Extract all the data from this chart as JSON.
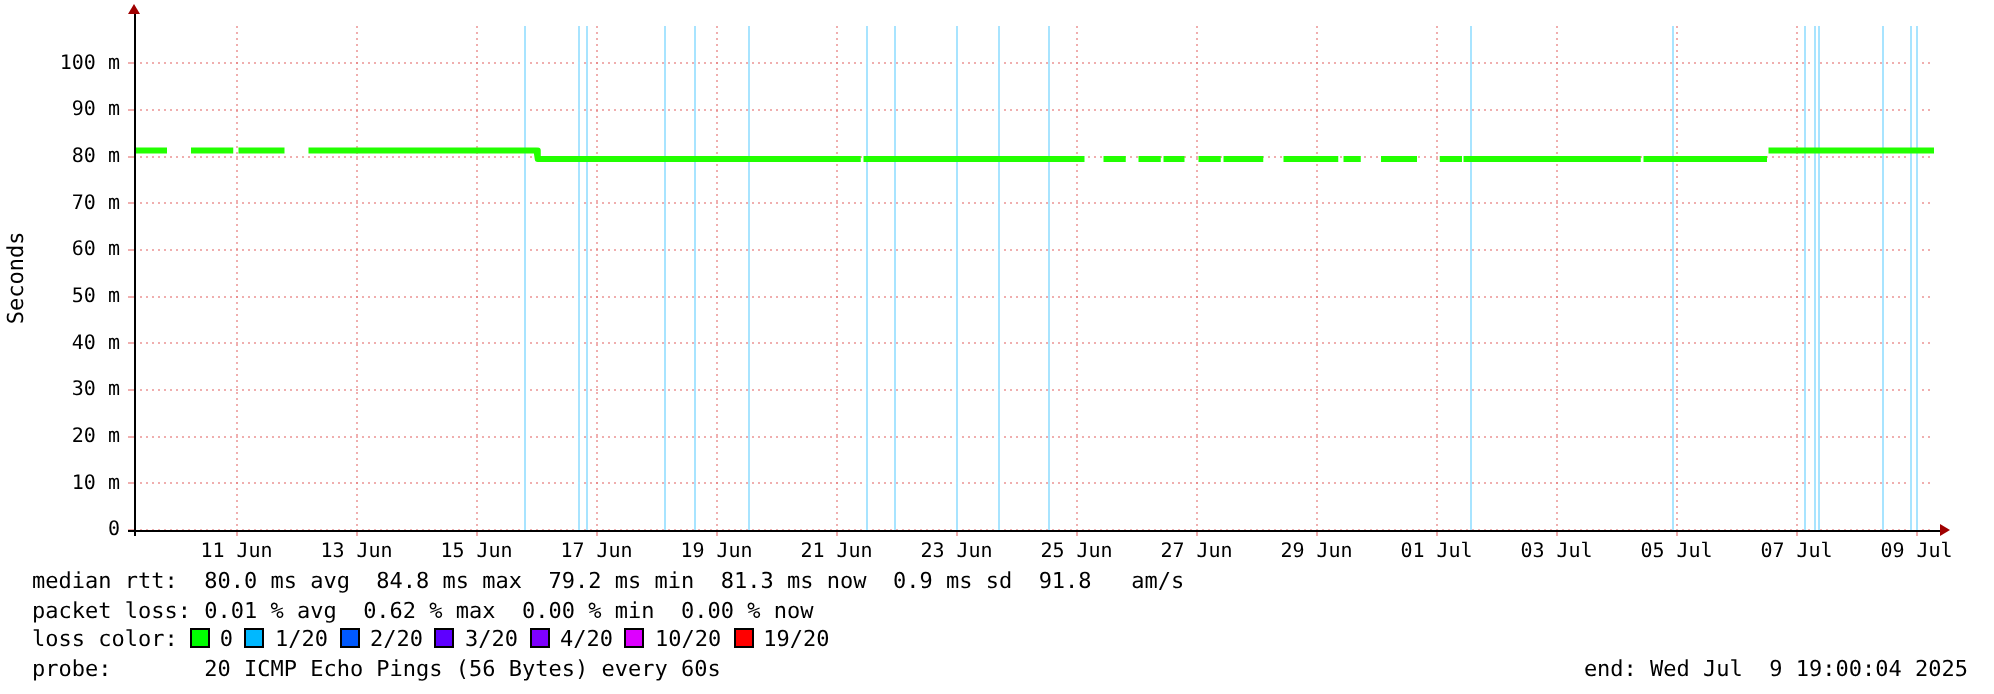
{
  "chart_data": {
    "type": "line",
    "ylabel": "Seconds",
    "xlim": [
      "2025-06-09T19:00",
      "2025-07-09T19:00"
    ],
    "xticks": [
      {
        "value": "2025-06-11T12:00",
        "label": "11 Jun"
      },
      {
        "value": "2025-06-13T12:00",
        "label": "13 Jun"
      },
      {
        "value": "2025-06-15T12:00",
        "label": "15 Jun"
      },
      {
        "value": "2025-06-17T12:00",
        "label": "17 Jun"
      },
      {
        "value": "2025-06-19T12:00",
        "label": "19 Jun"
      },
      {
        "value": "2025-06-21T12:00",
        "label": "21 Jun"
      },
      {
        "value": "2025-06-23T12:00",
        "label": "23 Jun"
      },
      {
        "value": "2025-06-25T12:00",
        "label": "25 Jun"
      },
      {
        "value": "2025-06-27T12:00",
        "label": "27 Jun"
      },
      {
        "value": "2025-06-29T12:00",
        "label": "29 Jun"
      },
      {
        "value": "2025-07-01T12:00",
        "label": "01 Jul"
      },
      {
        "value": "2025-07-03T12:00",
        "label": "03 Jul"
      },
      {
        "value": "2025-07-05T12:00",
        "label": "05 Jul"
      },
      {
        "value": "2025-07-07T12:00",
        "label": "07 Jul"
      },
      {
        "value": "2025-07-09T12:00",
        "label": "09 Jul"
      }
    ],
    "ylim": [
      0,
      108
    ],
    "yticks": [
      0,
      {
        "value": 10,
        "label": "10 m"
      },
      {
        "value": 20,
        "label": "20 m"
      },
      {
        "value": 30,
        "label": "30 m"
      },
      {
        "value": 40,
        "label": "40 m"
      },
      {
        "value": 50,
        "label": "50 m"
      },
      {
        "value": 60,
        "label": "60 m"
      },
      {
        "value": 70,
        "label": "70 m"
      },
      {
        "value": 80,
        "label": "80 m"
      },
      {
        "value": 90,
        "label": "90 m"
      },
      {
        "value": 100,
        "label": "100 m"
      }
    ],
    "grid": true,
    "legend": false,
    "marker": "none",
    "line_style": "solid",
    "series": [
      {
        "color": "#22ff00",
        "x": [
          "2025-06-09T19:00",
          "2025-06-10T07:00",
          "2025-06-10T13:00",
          "2025-06-10T19:00",
          "2025-06-11T09:30",
          "2025-06-11T12:00",
          "2025-06-11T14:00",
          "2025-06-12T06:00",
          "2025-06-12T12:00",
          "2025-06-12T18:00",
          "2025-06-16T12:00",
          "2025-06-16T12:30",
          "2025-06-21T20:30",
          "2025-06-21T22:00",
          "2025-06-22T00:00",
          "2025-06-25T14:00",
          "2025-06-25T18:00",
          "2025-06-26T00:00",
          "2025-06-26T06:30",
          "2025-06-26T10:00",
          "2025-06-26T14:00",
          "2025-06-26T20:30",
          "2025-06-26T22:00",
          "2025-06-27T00:00",
          "2025-06-27T06:00",
          "2025-06-27T10:00",
          "2025-06-27T14:00",
          "2025-06-27T20:30",
          "2025-06-27T22:00",
          "2025-06-28T00:00",
          "2025-06-28T13:30",
          "2025-06-28T18:00",
          "2025-06-29T00:00",
          "2025-06-29T19:30",
          "2025-06-29T22:00",
          "2025-06-30T00:00",
          "2025-06-30T04:30",
          "2025-06-30T10:00",
          "2025-06-30T15:00",
          "2025-07-01T03:00",
          "2025-07-01T09:00",
          "2025-07-01T14:30",
          "2025-07-01T21:00",
          "2025-07-01T22:30",
          "2025-07-02T00:00",
          "2025-07-04T20:30",
          "2025-07-04T22:00",
          "2025-07-05T00:00",
          "2025-07-06T23:00",
          "2025-07-07T01:00",
          "2025-07-07T02:00",
          "2025-07-09T19:00"
        ],
        "values": [
          81.3,
          81.3,
          null,
          81.3,
          81.3,
          null,
          81.3,
          81.3,
          null,
          81.3,
          81.3,
          79.5,
          79.5,
          null,
          79.5,
          79.5,
          null,
          79.5,
          79.5,
          null,
          79.5,
          79.5,
          null,
          79.5,
          79.5,
          null,
          79.5,
          79.5,
          null,
          79.5,
          79.5,
          null,
          79.5,
          79.5,
          null,
          79.5,
          79.5,
          null,
          79.5,
          79.5,
          null,
          79.5,
          79.5,
          null,
          79.5,
          79.5,
          null,
          79.5,
          79.5,
          null,
          81.3,
          81.3
        ]
      }
    ],
    "ref_lines": [
      {
        "axis": "x",
        "value": "2025-06-16T07:00",
        "color": "#a8e4ff"
      },
      {
        "axis": "x",
        "value": "2025-06-17T04:30",
        "color": "#a8e4ff"
      },
      {
        "axis": "x",
        "value": "2025-06-17T08:00",
        "color": "#a8e4ff"
      },
      {
        "axis": "x",
        "value": "2025-06-18T15:00",
        "color": "#a8e4ff"
      },
      {
        "axis": "x",
        "value": "2025-06-19T03:00",
        "color": "#a8e4ff"
      },
      {
        "axis": "x",
        "value": "2025-06-20T00:30",
        "color": "#a8e4ff"
      },
      {
        "axis": "x",
        "value": "2025-06-22T00:00",
        "color": "#a8e4ff"
      },
      {
        "axis": "x",
        "value": "2025-06-22T11:00",
        "color": "#a8e4ff"
      },
      {
        "axis": "x",
        "value": "2025-06-23T12:00",
        "color": "#a8e4ff"
      },
      {
        "axis": "x",
        "value": "2025-06-24T04:30",
        "color": "#a8e4ff"
      },
      {
        "axis": "x",
        "value": "2025-06-25T00:30",
        "color": "#a8e4ff"
      },
      {
        "axis": "x",
        "value": "2025-07-02T01:30",
        "color": "#a8e4ff"
      },
      {
        "axis": "x",
        "value": "2025-07-05T10:00",
        "color": "#a8e4ff"
      },
      {
        "axis": "x",
        "value": "2025-07-07T15:00",
        "color": "#a8e4ff"
      },
      {
        "axis": "x",
        "value": "2025-07-07T19:00",
        "color": "#a8e4ff"
      },
      {
        "axis": "x",
        "value": "2025-07-07T20:30",
        "color": "#a8e4ff"
      },
      {
        "axis": "x",
        "value": "2025-07-08T22:00",
        "color": "#a8e4ff"
      },
      {
        "axis": "x",
        "value": "2025-07-09T09:30",
        "color": "#a8e4ff"
      },
      {
        "axis": "x",
        "value": "2025-07-09T12:00",
        "color": "#a8e4ff"
      }
    ],
    "annotations": [
      "median rtt:  80.0 ms avg  84.8 ms max  79.2 ms min  81.3 ms now  0.9 ms sd  91.8   am/s",
      "packet loss: 0.01 % avg  0.62 % max  0.00 % min  0.00 % now",
      "loss color:",
      "0",
      "1/20",
      "2/20",
      "3/20",
      "4/20",
      "10/20",
      "19/20",
      "probe:       20 ICMP Echo Pings (56 Bytes) every 60s",
      "end: Wed Jul  9 19:00:04 2025"
    ]
  }
}
